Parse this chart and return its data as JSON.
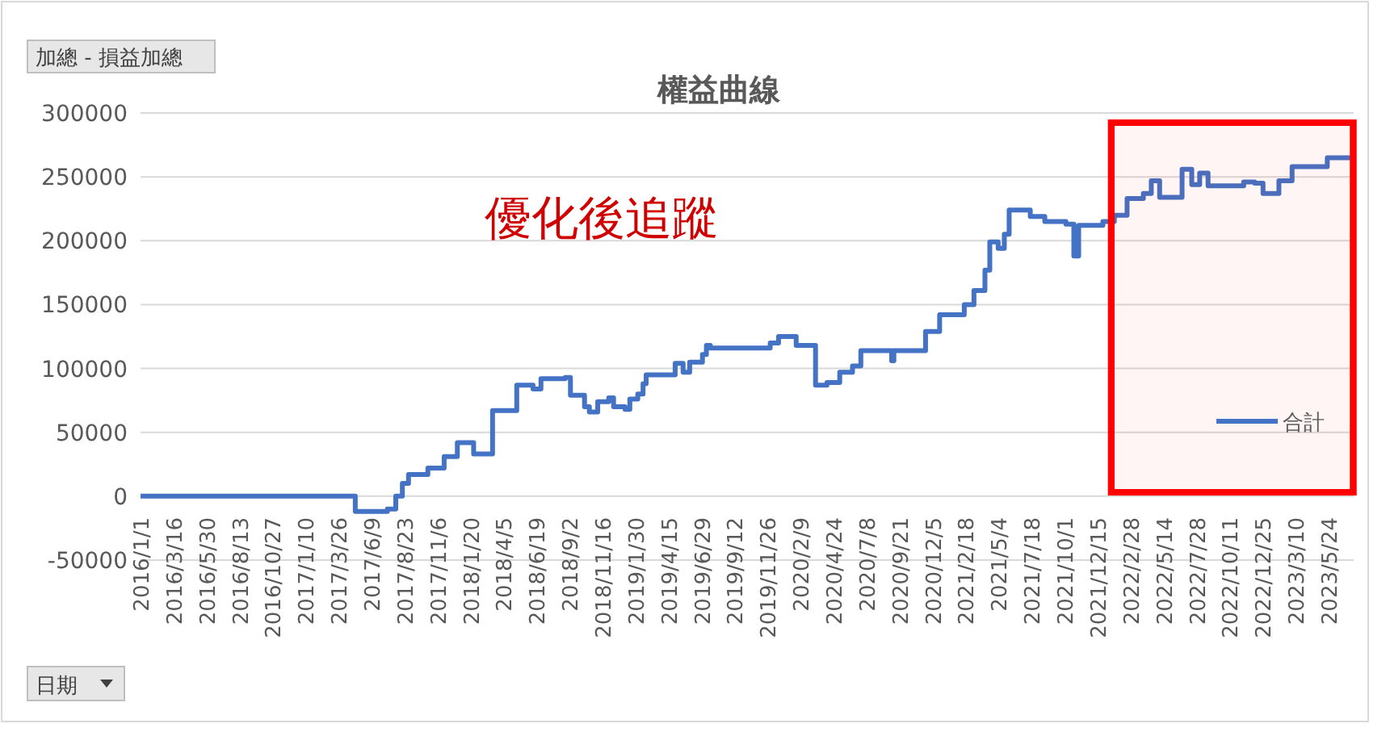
{
  "chart_data": {
    "type": "step",
    "title": "權益曲線",
    "annotations": [
      "加總 - 損益加總",
      "優化後追蹤",
      "日期"
    ],
    "x": [
      "2016-01-01",
      "2017-05-03",
      "2017-07-15",
      "2017-08-03",
      "2017-08-18",
      "2017-09-01",
      "2017-10-15",
      "2017-11-21",
      "2017-12-21",
      "2018-01-27",
      "2018-03-11",
      "2018-05-05",
      "2018-06-11",
      "2018-06-29",
      "2018-08-23",
      "2018-09-04",
      "2018-10-06",
      "2018-10-17",
      "2018-11-05",
      "2018-11-30",
      "2018-12-11",
      "2019-01-06",
      "2019-01-17",
      "2019-02-04",
      "2019-02-16",
      "2019-02-23",
      "2019-04-30",
      "2019-05-18",
      "2019-06-02",
      "2019-07-01",
      "2019-07-10",
      "2019-07-19",
      "2019-12-02",
      "2019-12-21",
      "2020-01-30",
      "2020-03-14",
      "2020-04-09",
      "2020-05-08",
      "2020-06-06",
      "2020-06-25",
      "2020-09-03",
      "2020-09-08",
      "2020-11-19",
      "2020-12-21",
      "2021-02-15",
      "2021-03-09",
      "2021-04-03",
      "2021-04-14",
      "2021-05-03",
      "2021-05-17",
      "2021-05-28",
      "2021-07-15",
      "2021-08-17",
      "2021-10-04",
      "2021-10-22",
      "2021-11-02",
      "2021-12-27",
      "2022-01-22",
      "2022-02-20",
      "2022-03-29",
      "2022-04-16",
      "2022-05-05",
      "2022-06-25",
      "2022-07-17",
      "2022-08-04",
      "2022-08-23",
      "2022-11-12",
      "2022-12-07",
      "2022-12-26",
      "2023-01-31",
      "2023-03-02",
      "2023-05-21",
      "2023-07-12"
    ],
    "series": [
      {
        "name": "合計",
        "color": "#4472c4",
        "values": [
          0,
          -12000,
          -10000,
          0,
          10000,
          17000,
          22000,
          31000,
          42000,
          33000,
          67000,
          87000,
          84000,
          92000,
          93000,
          79000,
          70000,
          66000,
          74000,
          77000,
          70000,
          68000,
          76000,
          80000,
          88000,
          95000,
          104000,
          97000,
          105000,
          111000,
          118000,
          116000,
          120000,
          125000,
          118000,
          87000,
          89000,
          97000,
          102000,
          114000,
          106000,
          114000,
          129000,
          142000,
          150000,
          161000,
          177000,
          199000,
          194000,
          205000,
          224000,
          219000,
          215000,
          213000,
          188000,
          212000,
          215000,
          220000,
          233000,
          237000,
          247000,
          234000,
          256000,
          244000,
          253000,
          243000,
          246000,
          245000,
          237000,
          247000,
          258000,
          265000,
          266000
        ]
      }
    ],
    "xlim": [
      "2016-01-01",
      "2023-07-20"
    ],
    "xticks": [
      {
        "value": "2016-01-01",
        "label": "2016/1/1"
      },
      {
        "value": "2016-03-16",
        "label": "2016/3/16"
      },
      {
        "value": "2016-05-30",
        "label": "2016/5/30"
      },
      {
        "value": "2016-08-13",
        "label": "2016/8/13"
      },
      {
        "value": "2016-10-27",
        "label": "2016/10/27"
      },
      {
        "value": "2017-01-10",
        "label": "2017/1/10"
      },
      {
        "value": "2017-03-26",
        "label": "2017/3/26"
      },
      {
        "value": "2017-06-09",
        "label": "2017/6/9"
      },
      {
        "value": "2017-08-23",
        "label": "2017/8/23"
      },
      {
        "value": "2017-11-06",
        "label": "2017/11/6"
      },
      {
        "value": "2018-01-20",
        "label": "2018/1/20"
      },
      {
        "value": "2018-04-05",
        "label": "2018/4/5"
      },
      {
        "value": "2018-06-19",
        "label": "2018/6/19"
      },
      {
        "value": "2018-09-02",
        "label": "2018/9/2"
      },
      {
        "value": "2018-11-16",
        "label": "2018/11/16"
      },
      {
        "value": "2019-01-30",
        "label": "2019/1/30"
      },
      {
        "value": "2019-04-15",
        "label": "2019/4/15"
      },
      {
        "value": "2019-06-29",
        "label": "2019/6/29"
      },
      {
        "value": "2019-09-12",
        "label": "2019/9/12"
      },
      {
        "value": "2019-11-26",
        "label": "2019/11/26"
      },
      {
        "value": "2020-02-09",
        "label": "2020/2/9"
      },
      {
        "value": "2020-04-24",
        "label": "2020/4/24"
      },
      {
        "value": "2020-07-08",
        "label": "2020/7/8"
      },
      {
        "value": "2020-09-21",
        "label": "2020/9/21"
      },
      {
        "value": "2020-12-05",
        "label": "2020/12/5"
      },
      {
        "value": "2021-02-18",
        "label": "2021/2/18"
      },
      {
        "value": "2021-05-04",
        "label": "2021/5/4"
      },
      {
        "value": "2021-07-18",
        "label": "2021/7/18"
      },
      {
        "value": "2021-10-01",
        "label": "2021/10/1"
      },
      {
        "value": "2021-12-15",
        "label": "2021/12/15"
      },
      {
        "value": "2022-02-28",
        "label": "2022/2/28"
      },
      {
        "value": "2022-05-14",
        "label": "2022/5/14"
      },
      {
        "value": "2022-07-28",
        "label": "2022/7/28"
      },
      {
        "value": "2022-10-11",
        "label": "2022/10/11"
      },
      {
        "value": "2022-12-25",
        "label": "2022/12/25"
      },
      {
        "value": "2023-03-10",
        "label": "2023/3/10"
      },
      {
        "value": "2023-05-24",
        "label": "2023/5/24"
      }
    ],
    "ylim": [
      -50000,
      300000
    ],
    "yticks": [
      -50000,
      0,
      50000,
      100000,
      150000,
      200000,
      250000,
      300000
    ],
    "bands": [
      {
        "axis": "x",
        "from": "2022-01-15",
        "to": "2023-07-19",
        "color": "#ff0000"
      }
    ],
    "grid": "y",
    "legend": "bottom right",
    "line_style": "solid",
    "marker": "none"
  }
}
